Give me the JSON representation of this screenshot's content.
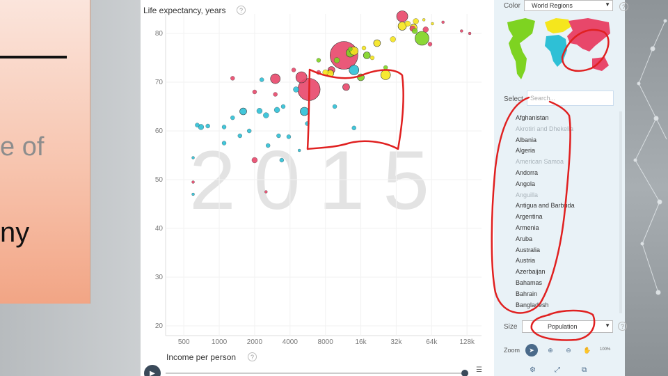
{
  "slide": {
    "text_line1": "e of",
    "text_line2": "ny"
  },
  "chart": {
    "ylabel": "Life expectancy, years",
    "xlabel": "Income per person",
    "year": "2015",
    "help": "?",
    "play": "▶",
    "list_icon": "☰"
  },
  "controls": {
    "color_label": "Color",
    "color_value": "World Regions",
    "select_label": "Select",
    "search_placeholder": "Search...",
    "size_label": "Size",
    "size_value": "Population",
    "zoom_label": "Zoom",
    "zoom_percent": "100%",
    "dropdown_arrow": "▼",
    "zoom_icons": [
      "➤",
      "⊕",
      "⊖",
      "✋"
    ],
    "bottom_icons": [
      "⚙",
      "⤢",
      "⧉"
    ]
  },
  "countries": [
    {
      "name": "Afghanistan",
      "dim": false
    },
    {
      "name": "Akrotiri and Dhekelia",
      "dim": true
    },
    {
      "name": "Albania",
      "dim": false
    },
    {
      "name": "Algeria",
      "dim": false
    },
    {
      "name": "American Samoa",
      "dim": true
    },
    {
      "name": "Andorra",
      "dim": false
    },
    {
      "name": "Angola",
      "dim": false
    },
    {
      "name": "Anguilla",
      "dim": true
    },
    {
      "name": "Antigua and Barbuda",
      "dim": false
    },
    {
      "name": "Argentina",
      "dim": false
    },
    {
      "name": "Armenia",
      "dim": false
    },
    {
      "name": "Aruba",
      "dim": false
    },
    {
      "name": "Australia",
      "dim": false
    },
    {
      "name": "Austria",
      "dim": false
    },
    {
      "name": "Azerbaijan",
      "dim": false
    },
    {
      "name": "Bahamas",
      "dim": false
    },
    {
      "name": "Bahrain",
      "dim": false
    },
    {
      "name": "Bangladesh",
      "dim": false
    }
  ],
  "colors": {
    "asia": "#e8476a",
    "europe": "#f5e61d",
    "africa": "#2ec0d6",
    "americas": "#7ed321",
    "annotation": "#e02020"
  },
  "chart_data": {
    "type": "scatter",
    "xlabel": "Income per person",
    "ylabel": "Life expectancy, years",
    "x_scale": "log",
    "xlim": [
      350,
      170000
    ],
    "ylim": [
      18,
      84
    ],
    "x_ticks": [
      500,
      1000,
      2000,
      4000,
      8000,
      16000,
      32000,
      64000,
      128000
    ],
    "x_tick_labels": [
      "500",
      "1000",
      "2000",
      "4000",
      "8000",
      "16k",
      "32k",
      "64k",
      "128k"
    ],
    "y_ticks": [
      20,
      30,
      40,
      50,
      60,
      70,
      80
    ],
    "points": [
      {
        "x": 11500,
        "y": 75.5,
        "r": 20,
        "c": "asia"
      },
      {
        "x": 5800,
        "y": 68.5,
        "r": 16,
        "c": "asia"
      },
      {
        "x": 5000,
        "y": 71.0,
        "r": 8,
        "c": "asia"
      },
      {
        "x": 2000,
        "y": 68.0,
        "r": 3,
        "c": "asia"
      },
      {
        "x": 1300,
        "y": 70.8,
        "r": 3,
        "c": "asia"
      },
      {
        "x": 3000,
        "y": 70.7,
        "r": 7,
        "c": "asia"
      },
      {
        "x": 5300,
        "y": 64.0,
        "r": 6,
        "c": "africa"
      },
      {
        "x": 4500,
        "y": 68.5,
        "r": 4,
        "c": "africa"
      },
      {
        "x": 14000,
        "y": 60.6,
        "r": 3,
        "c": "africa"
      },
      {
        "x": 5600,
        "y": 61.5,
        "r": 3,
        "c": "africa"
      },
      {
        "x": 14000,
        "y": 72.5,
        "r": 7,
        "c": "africa"
      },
      {
        "x": 2500,
        "y": 63.2,
        "r": 4,
        "c": "africa"
      },
      {
        "x": 3500,
        "y": 65.0,
        "r": 3,
        "c": "africa"
      },
      {
        "x": 3100,
        "y": 64.3,
        "r": 4,
        "c": "africa"
      },
      {
        "x": 1600,
        "y": 64.0,
        "r": 5,
        "c": "africa"
      },
      {
        "x": 2200,
        "y": 64.1,
        "r": 4,
        "c": "africa"
      },
      {
        "x": 1300,
        "y": 62.7,
        "r": 3,
        "c": "africa"
      },
      {
        "x": 1800,
        "y": 60.0,
        "r": 3,
        "c": "africa"
      },
      {
        "x": 1500,
        "y": 59.0,
        "r": 3,
        "c": "africa"
      },
      {
        "x": 1100,
        "y": 60.8,
        "r": 3,
        "c": "africa"
      },
      {
        "x": 800,
        "y": 61.0,
        "r": 3,
        "c": "africa"
      },
      {
        "x": 700,
        "y": 60.8,
        "r": 4,
        "c": "africa"
      },
      {
        "x": 650,
        "y": 61.2,
        "r": 3,
        "c": "africa"
      },
      {
        "x": 600,
        "y": 54.5,
        "r": 2,
        "c": "africa"
      },
      {
        "x": 1100,
        "y": 57.5,
        "r": 3,
        "c": "africa"
      },
      {
        "x": 3200,
        "y": 59.0,
        "r": 3,
        "c": "africa"
      },
      {
        "x": 3900,
        "y": 58.8,
        "r": 3,
        "c": "africa"
      },
      {
        "x": 2600,
        "y": 57.0,
        "r": 3,
        "c": "africa"
      },
      {
        "x": 3400,
        "y": 54.0,
        "r": 3,
        "c": "africa"
      },
      {
        "x": 4800,
        "y": 56.0,
        "r": 2,
        "c": "africa"
      },
      {
        "x": 9600,
        "y": 65.0,
        "r": 3,
        "c": "africa"
      },
      {
        "x": 2300,
        "y": 70.5,
        "r": 3,
        "c": "africa"
      },
      {
        "x": 2000,
        "y": 54.0,
        "r": 4,
        "c": "asia"
      },
      {
        "x": 600,
        "y": 49.5,
        "r": 2,
        "c": "asia"
      },
      {
        "x": 2500,
        "y": 47.5,
        "r": 2,
        "c": "asia"
      },
      {
        "x": 3000,
        "y": 67.5,
        "r": 3,
        "c": "asia"
      },
      {
        "x": 4300,
        "y": 72.5,
        "r": 3,
        "c": "asia"
      },
      {
        "x": 7000,
        "y": 72.0,
        "r": 3,
        "c": "asia"
      },
      {
        "x": 9000,
        "y": 72.5,
        "r": 5,
        "c": "asia"
      },
      {
        "x": 12000,
        "y": 69.0,
        "r": 5,
        "c": "asia"
      },
      {
        "x": 16000,
        "y": 71.0,
        "r": 5,
        "c": "americas"
      },
      {
        "x": 18000,
        "y": 75.5,
        "r": 5,
        "c": "americas"
      },
      {
        "x": 13000,
        "y": 76.0,
        "r": 6,
        "c": "americas"
      },
      {
        "x": 10000,
        "y": 74.5,
        "r": 4,
        "c": "americas"
      },
      {
        "x": 7000,
        "y": 74.5,
        "r": 3,
        "c": "americas"
      },
      {
        "x": 8000,
        "y": 72.0,
        "r": 4,
        "c": "europe"
      },
      {
        "x": 8800,
        "y": 71.8,
        "r": 5,
        "c": "europe"
      },
      {
        "x": 14000,
        "y": 76.4,
        "r": 6,
        "c": "europe"
      },
      {
        "x": 20000,
        "y": 75.0,
        "r": 3,
        "c": "europe"
      },
      {
        "x": 22000,
        "y": 78.0,
        "r": 5,
        "c": "europe"
      },
      {
        "x": 26000,
        "y": 71.5,
        "r": 7,
        "c": "europe"
      },
      {
        "x": 30000,
        "y": 78.8,
        "r": 4,
        "c": "europe"
      },
      {
        "x": 36000,
        "y": 81.5,
        "r": 6,
        "c": "europe"
      },
      {
        "x": 40000,
        "y": 82.0,
        "r": 4,
        "c": "europe"
      },
      {
        "x": 45000,
        "y": 81.2,
        "r": 5,
        "c": "europe"
      },
      {
        "x": 47000,
        "y": 82.5,
        "r": 4,
        "c": "europe"
      },
      {
        "x": 44000,
        "y": 81.0,
        "r": 4,
        "c": "asia"
      },
      {
        "x": 36000,
        "y": 83.5,
        "r": 8,
        "c": "asia"
      },
      {
        "x": 53000,
        "y": 79.0,
        "r": 10,
        "c": "americas"
      },
      {
        "x": 46000,
        "y": 80.5,
        "r": 4,
        "c": "americas"
      },
      {
        "x": 57000,
        "y": 80.8,
        "r": 4,
        "c": "asia"
      },
      {
        "x": 62000,
        "y": 77.8,
        "r": 3,
        "c": "asia"
      },
      {
        "x": 55000,
        "y": 82.8,
        "r": 2,
        "c": "europe"
      },
      {
        "x": 65000,
        "y": 82.0,
        "r": 2,
        "c": "europe"
      },
      {
        "x": 80000,
        "y": 82.3,
        "r": 2,
        "c": "asia"
      },
      {
        "x": 115000,
        "y": 80.5,
        "r": 2,
        "c": "asia"
      },
      {
        "x": 135000,
        "y": 80.0,
        "r": 2,
        "c": "asia"
      },
      {
        "x": 26000,
        "y": 73.0,
        "r": 3,
        "c": "americas"
      },
      {
        "x": 17000,
        "y": 77.0,
        "r": 3,
        "c": "europe"
      },
      {
        "x": 13000,
        "y": 76.8,
        "r": 3,
        "c": "americas"
      },
      {
        "x": 600,
        "y": 47.0,
        "r": 2,
        "c": "africa"
      }
    ]
  }
}
